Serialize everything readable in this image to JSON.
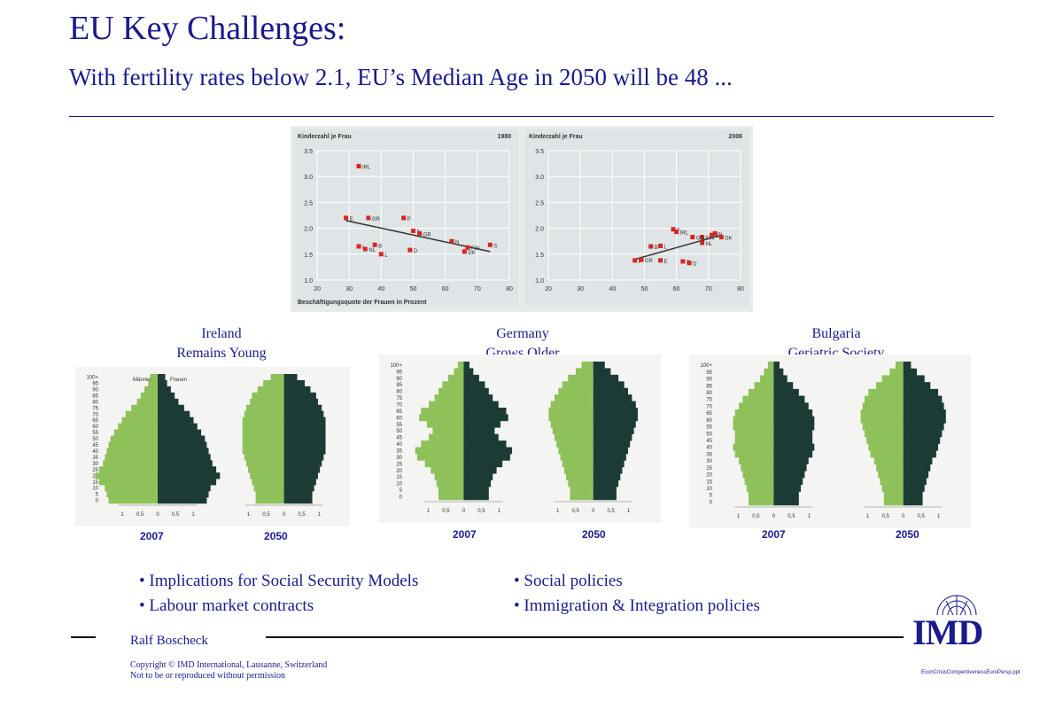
{
  "header": {
    "title": "EU Key Challenges:",
    "subtitle": "With fertility rates below 2.1, EU’s Median Age in 2050 will be 48 ..."
  },
  "chart_data": [
    {
      "type": "scatter",
      "title": "1980",
      "ylabel": "Kinderzahl je Frau",
      "xlabel": "Beschäftigungsquote der Frauen in Prozent",
      "xlim": [
        20,
        80
      ],
      "ylim": [
        1.0,
        3.5
      ],
      "xticks": [
        20,
        30,
        40,
        50,
        60,
        70,
        80
      ],
      "yticks": [
        1.0,
        1.5,
        2.0,
        2.5,
        3.0,
        3.5
      ],
      "points": [
        {
          "label": "IRL",
          "x": 33,
          "y": 3.2
        },
        {
          "label": "E",
          "x": 29,
          "y": 2.2
        },
        {
          "label": "GR",
          "x": 36,
          "y": 2.2
        },
        {
          "label": "P",
          "x": 47,
          "y": 2.2
        },
        {
          "label": "F",
          "x": 50,
          "y": 1.95
        },
        {
          "label": "GB",
          "x": 52,
          "y": 1.9
        },
        {
          "label": "N",
          "x": 62,
          "y": 1.75
        },
        {
          "label": "FIN",
          "x": 67,
          "y": 1.63
        },
        {
          "label": "S",
          "x": 74,
          "y": 1.68
        },
        {
          "label": "I",
          "x": 33,
          "y": 1.65
        },
        {
          "label": "B",
          "x": 38,
          "y": 1.68
        },
        {
          "label": "NL",
          "x": 35,
          "y": 1.6
        },
        {
          "label": "L",
          "x": 40,
          "y": 1.5
        },
        {
          "label": "D",
          "x": 49,
          "y": 1.58
        },
        {
          "label": "DK",
          "x": 66,
          "y": 1.55
        }
      ],
      "trend": {
        "x": [
          29,
          74
        ],
        "y": [
          2.15,
          1.55
        ]
      },
      "grid": true
    },
    {
      "type": "scatter",
      "title": "2006",
      "ylabel": "Kinderzahl je Frau",
      "xlim": [
        20,
        80
      ],
      "ylim": [
        1.0,
        3.5
      ],
      "xticks": [
        20,
        30,
        40,
        50,
        60,
        70,
        80
      ],
      "yticks": [
        1.0,
        1.5,
        2.0,
        2.5,
        3.0,
        3.5
      ],
      "points": [
        {
          "label": "F",
          "x": 59,
          "y": 1.98
        },
        {
          "label": "IRL",
          "x": 60,
          "y": 1.93
        },
        {
          "label": "FIN",
          "x": 68,
          "y": 1.83
        },
        {
          "label": "S",
          "x": 71,
          "y": 1.87
        },
        {
          "label": "N",
          "x": 72,
          "y": 1.9
        },
        {
          "label": "GB",
          "x": 65,
          "y": 1.83
        },
        {
          "label": "DK",
          "x": 74,
          "y": 1.83
        },
        {
          "label": "NL",
          "x": 68,
          "y": 1.72
        },
        {
          "label": "B",
          "x": 52,
          "y": 1.65
        },
        {
          "label": "L",
          "x": 55,
          "y": 1.66
        },
        {
          "label": "I",
          "x": 47,
          "y": 1.38
        },
        {
          "label": "GR",
          "x": 49,
          "y": 1.39
        },
        {
          "label": "E",
          "x": 55,
          "y": 1.38
        },
        {
          "label": "P",
          "x": 62,
          "y": 1.36
        },
        {
          "label": "D",
          "x": 64,
          "y": 1.33
        }
      ],
      "trend": {
        "x": [
          47,
          74
        ],
        "y": [
          1.4,
          1.87
        ]
      },
      "grid": true
    }
  ],
  "pyramids": [
    {
      "country": "Ireland",
      "caption": "Remains Young",
      "years": [
        "2007",
        "2050"
      ],
      "legend": [
        "Männer",
        "Frauen"
      ]
    },
    {
      "country": "Germany",
      "caption": "Grows Older",
      "years": [
        "2007",
        "2050"
      ]
    },
    {
      "country": "Bulgaria",
      "caption": "Geriatric Society",
      "years": [
        "2007",
        "2050"
      ]
    }
  ],
  "pyramid_axis": {
    "age_labels": [
      "100+",
      "95",
      "90",
      "85",
      "80",
      "75",
      "70",
      "65",
      "60",
      "55",
      "50",
      "45",
      "40",
      "35",
      "30",
      "25",
      "20",
      "15",
      "10",
      "5",
      "0"
    ],
    "x_labels": [
      "1",
      "0,5",
      "0",
      "0,5",
      "1"
    ]
  },
  "bullets_left": [
    "Implications for Social Security Models",
    "Labour market contracts"
  ],
  "bullets_right": [
    "Social policies",
    "Immigration & Integration policies"
  ],
  "footer": {
    "author": "Ralf Boscheck",
    "copyright_line1": "Copyright © IMD International, Lausanne, Switzerland",
    "copyright_line2": "Not to be or reproduced without permission",
    "filename": "EconCrisisCompentivenessEuroPersp.ppt",
    "logo": "IMD"
  },
  "colors": {
    "accent": "#1a1a8c",
    "male": "#8fc15a",
    "female": "#1d3b36",
    "point": "#d6261f",
    "chart_bg": "#dfe4e6"
  }
}
